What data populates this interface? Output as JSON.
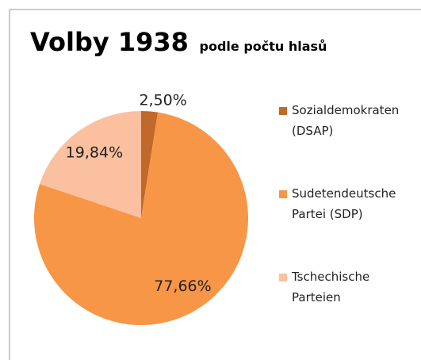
{
  "chart_data": {
    "type": "pie",
    "title": "Volby 1938",
    "subtitle": "podle počtu hlasů",
    "categories": [
      "Sozialdemokraten (DSAP)",
      "Sudetendeutsche Partei (SDP)",
      "Tschechische Parteien"
    ],
    "values": [
      2.5,
      77.66,
      19.84
    ],
    "value_labels": [
      "2,50%",
      "77,66%",
      "19,84%"
    ],
    "colors": [
      "#c0692a",
      "#f79646",
      "#fac09f"
    ],
    "legend": "right"
  }
}
